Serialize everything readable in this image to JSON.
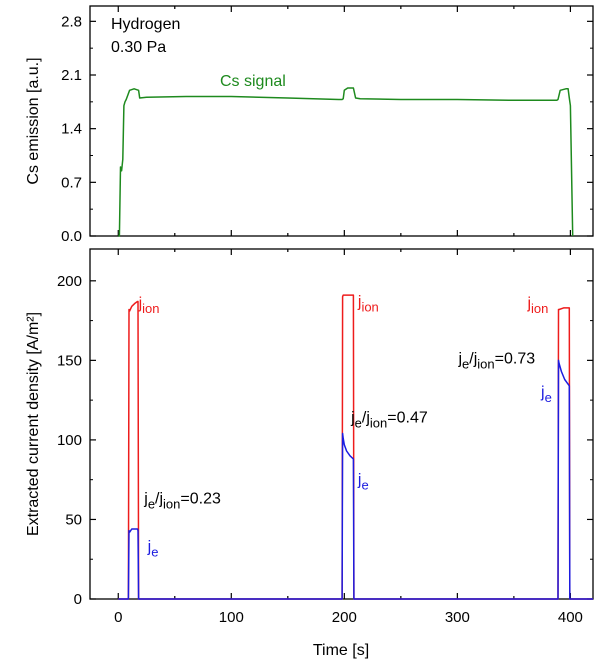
{
  "chart_data": [
    {
      "type": "line",
      "ylabel": "Cs emission [a.u.]",
      "xlabel": "",
      "xlim": [
        -25,
        420
      ],
      "ylim": [
        0,
        3.0
      ],
      "yticks": [
        "0.0",
        "0.7",
        "1.4",
        "2.1",
        "2.8"
      ],
      "ytick_values": [
        0.0,
        0.7,
        1.4,
        2.1,
        2.8
      ],
      "grid": false,
      "annotations": {
        "gas": "Hydrogen",
        "pressure": "0.30 Pa",
        "signal_label": "Cs signal"
      },
      "series": [
        {
          "name": "Cs signal",
          "color": "#1e8a1e",
          "x": [
            0,
            1,
            2,
            3,
            4,
            5,
            6,
            7,
            10,
            14,
            18,
            19,
            25,
            60,
            100,
            150,
            195,
            198,
            199,
            200,
            203,
            208,
            210,
            214,
            250,
            300,
            350,
            385,
            388,
            389,
            391,
            396,
            398,
            399,
            400,
            402
          ],
          "y": [
            0.0,
            0.0,
            0.9,
            0.85,
            1.0,
            1.7,
            1.75,
            1.78,
            1.9,
            1.92,
            1.9,
            1.8,
            1.81,
            1.82,
            1.82,
            1.8,
            1.78,
            1.78,
            1.79,
            1.9,
            1.93,
            1.93,
            1.8,
            1.79,
            1.78,
            1.78,
            1.77,
            1.77,
            1.77,
            1.78,
            1.9,
            1.92,
            1.92,
            1.8,
            1.7,
            0.0
          ]
        }
      ]
    },
    {
      "type": "line",
      "ylabel": "Extracted current density [A/m²]",
      "xlabel": "Time [s]",
      "xlim": [
        -25,
        420
      ],
      "ylim": [
        0,
        220
      ],
      "yticks": [
        "0",
        "50",
        "100",
        "150",
        "200"
      ],
      "ytick_values": [
        0,
        50,
        100,
        150,
        200
      ],
      "xticks": [
        "0",
        "100",
        "200",
        "300",
        "400"
      ],
      "xtick_values": [
        0,
        100,
        200,
        300,
        400
      ],
      "grid": false,
      "annotations": [
        {
          "base": "j",
          "sub": "ion",
          "color": "#ee1c1c",
          "x": 18,
          "y": 183
        },
        {
          "base": "j",
          "sub": "e",
          "color": "#1c1ce0",
          "x": 26,
          "y": 30
        },
        {
          "base": "j",
          "sub": "e",
          "sub2": "ion",
          "value": "=0.23",
          "color": "#000000",
          "x": 23,
          "y": 60
        },
        {
          "base": "j",
          "sub": "ion",
          "color": "#ee1c1c",
          "x": 212,
          "y": 184
        },
        {
          "base": "j",
          "sub": "e",
          "color": "#1c1ce0",
          "x": 212,
          "y": 72
        },
        {
          "base": "j",
          "sub": "e",
          "sub2": "ion",
          "value": "=0.47",
          "color": "#000000",
          "x": 206,
          "y": 111
        },
        {
          "base": "j",
          "sub": "ion",
          "color": "#ee1c1c",
          "x": 362,
          "y": 183
        },
        {
          "base": "j",
          "sub": "e",
          "color": "#1c1ce0",
          "x": 374,
          "y": 127
        },
        {
          "base": "j",
          "sub": "e",
          "sub2": "ion",
          "value": "=0.73",
          "color": "#000000",
          "x": 301,
          "y": 148
        }
      ],
      "series": [
        {
          "name": "jion",
          "color": "#ee1c1c",
          "x": [
            0,
            9,
            9.5,
            10,
            12,
            15,
            17,
            17.5,
            18,
            60,
            198,
            198.5,
            199,
            203,
            207,
            208,
            208.5,
            209,
            300,
            389,
            389.5,
            390,
            394,
            398,
            399,
            399.5,
            400,
            420
          ],
          "y": [
            0,
            0,
            182,
            181,
            184,
            186,
            187,
            187,
            0,
            0,
            0,
            190,
            191,
            191,
            191,
            191,
            0,
            0,
            0,
            0,
            182,
            182,
            183,
            183,
            183,
            0,
            0,
            0
          ]
        },
        {
          "name": "je",
          "color": "#1c1ce0",
          "x": [
            0,
            9,
            9.5,
            10,
            12,
            15,
            17,
            17.5,
            18,
            60,
            198,
            198.5,
            199,
            200,
            202,
            205,
            208,
            208.5,
            209,
            300,
            389,
            389.5,
            390,
            392,
            395,
            398,
            399,
            399.5,
            400,
            420
          ],
          "y": [
            0,
            0,
            43,
            42,
            44,
            44,
            44,
            43,
            0,
            0,
            0,
            104,
            101,
            97,
            93,
            90,
            88,
            0,
            0,
            0,
            0,
            150,
            148,
            143,
            138,
            135,
            134,
            0,
            0,
            0
          ]
        }
      ]
    }
  ]
}
